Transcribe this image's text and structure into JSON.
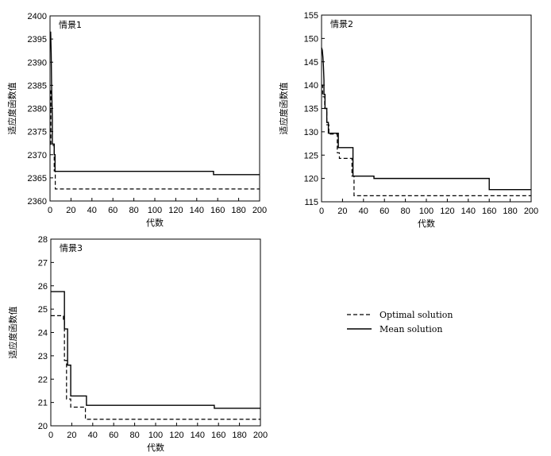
{
  "chart_data": [
    {
      "type": "line",
      "title": "情景1",
      "xlabel": "代数",
      "ylabel": "适应度函数值",
      "xlim": [
        0,
        200
      ],
      "ylim": [
        2360,
        2400
      ],
      "xticks": [
        0,
        20,
        40,
        60,
        80,
        100,
        120,
        140,
        160,
        180,
        200
      ],
      "yticks": [
        2360,
        2365,
        2370,
        2375,
        2380,
        2385,
        2390,
        2395,
        2400
      ],
      "series": [
        {
          "name": "Optimal solution",
          "style": "dashed",
          "x": [
            0,
            0.8,
            0.8,
            4,
            4,
            5,
            5,
            200
          ],
          "y": [
            2383.8,
            2383.8,
            2372,
            2372,
            2366.5,
            2366.5,
            2362.6,
            2362.6
          ]
        },
        {
          "name": "Mean solution",
          "style": "solid",
          "x": [
            0,
            0.6,
            1.1,
            1.5,
            2.2,
            2.2,
            4,
            4,
            4.8,
            4.8,
            156,
            156,
            200
          ],
          "y": [
            2396.5,
            2396.5,
            2392,
            2385,
            2378,
            2372.3,
            2372.3,
            2370,
            2370,
            2366.4,
            2366.4,
            2365.7,
            2365.7
          ]
        }
      ]
    },
    {
      "type": "line",
      "title": "情景2",
      "xlabel": "代数",
      "ylabel": "适应度函数值",
      "xlim": [
        0,
        200
      ],
      "ylim": [
        115,
        155
      ],
      "xticks": [
        0,
        20,
        40,
        60,
        80,
        100,
        120,
        140,
        160,
        180,
        200
      ],
      "yticks": [
        115,
        120,
        125,
        130,
        135,
        140,
        145,
        150,
        155
      ],
      "series": [
        {
          "name": "Optimal solution",
          "style": "dashed",
          "x": [
            0,
            1,
            1,
            3,
            3,
            5,
            5,
            7,
            7,
            15,
            15,
            17,
            17,
            29,
            29,
            31,
            31,
            200
          ],
          "y": [
            140,
            140,
            137.5,
            137.5,
            135,
            135,
            131.5,
            131.5,
            129.5,
            129.5,
            125.5,
            125.5,
            124.3,
            124.3,
            120.5,
            120.5,
            116.3,
            116.3
          ]
        },
        {
          "name": "Mean solution",
          "style": "solid",
          "x": [
            0,
            0.7,
            1.3,
            1.8,
            2.3,
            2.3,
            3.3,
            3.3,
            5,
            5,
            6.5,
            6.5,
            16,
            16,
            30,
            30,
            50,
            50,
            160,
            160,
            200
          ],
          "y": [
            148,
            147.5,
            146,
            144,
            141,
            138,
            138,
            135,
            135,
            132,
            132,
            129.7,
            129.7,
            126.6,
            126.6,
            120.5,
            120.5,
            120,
            120,
            117.6,
            117.6
          ]
        }
      ]
    },
    {
      "type": "line",
      "title": "情景3",
      "xlabel": "代数",
      "ylabel": "适应度函数值",
      "xlim": [
        0,
        200
      ],
      "ylim": [
        20,
        28
      ],
      "xticks": [
        0,
        20,
        40,
        60,
        80,
        100,
        120,
        140,
        160,
        180,
        200
      ],
      "yticks": [
        20,
        21,
        22,
        23,
        24,
        25,
        26,
        27,
        28
      ],
      "series": [
        {
          "name": "Optimal solution",
          "style": "dashed",
          "x": [
            0,
            12,
            12,
            13,
            13,
            15,
            15,
            19,
            19,
            33,
            33,
            200
          ],
          "y": [
            24.72,
            24.72,
            24.5,
            24.5,
            22.8,
            22.8,
            21.15,
            21.15,
            20.8,
            20.8,
            20.28,
            20.28
          ]
        },
        {
          "name": "Mean solution",
          "style": "solid",
          "x": [
            0,
            13,
            13,
            16,
            16,
            19,
            19,
            34,
            34,
            156,
            156,
            200
          ],
          "y": [
            25.75,
            25.75,
            24.15,
            24.15,
            22.6,
            22.6,
            21.28,
            21.28,
            20.88,
            20.88,
            20.75,
            20.75
          ]
        }
      ]
    }
  ],
  "legend": {
    "position": "lower-right",
    "items": [
      {
        "label": "Optimal solution",
        "style": "dashed"
      },
      {
        "label": "Mean solution",
        "style": "solid"
      }
    ]
  }
}
